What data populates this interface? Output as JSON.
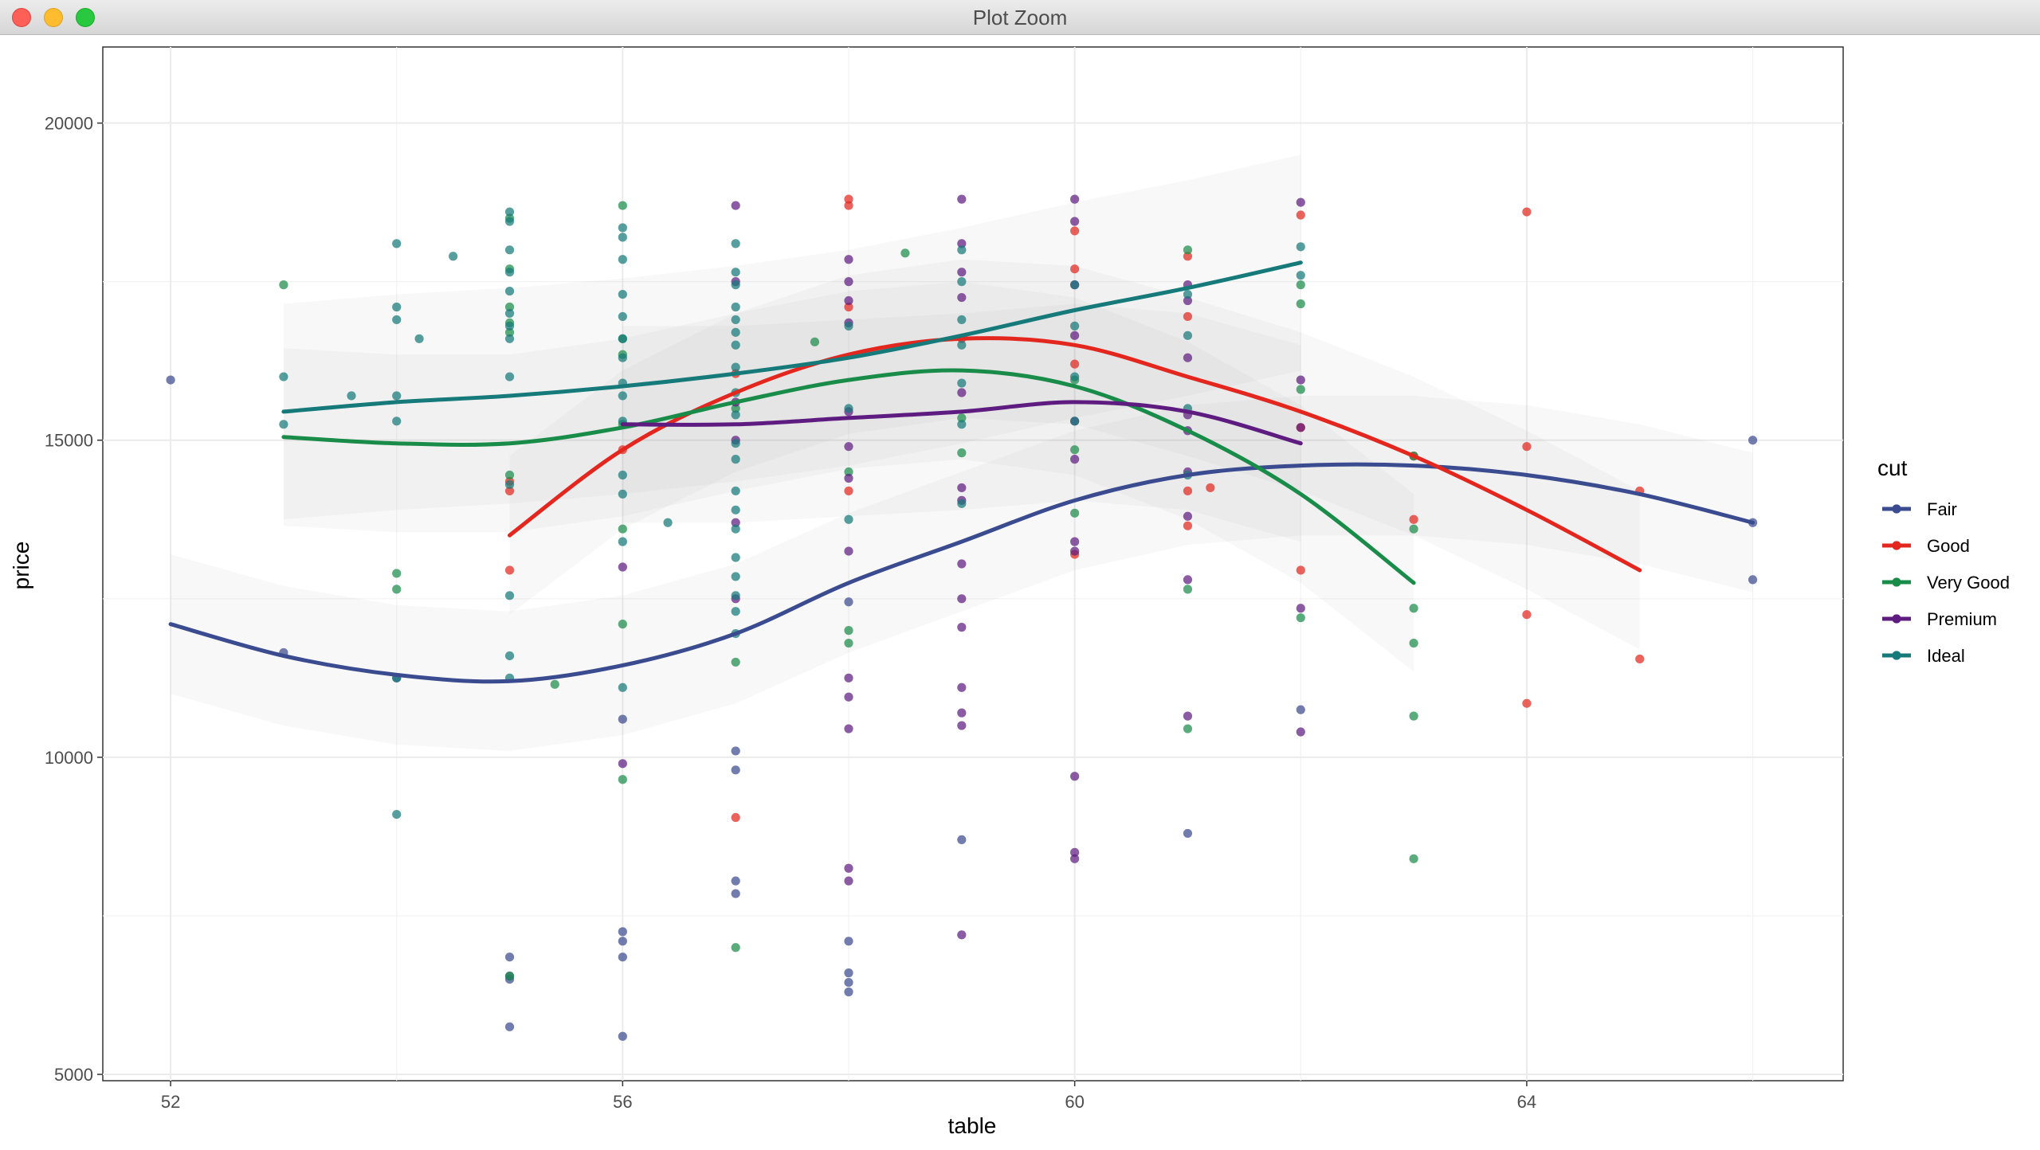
{
  "window": {
    "title": "Plot Zoom"
  },
  "chart_data": {
    "type": "scatter",
    "title": "",
    "xlabel": "table",
    "ylabel": "price",
    "xlim": [
      51.4,
      66.8
    ],
    "ylim": [
      4900,
      21200
    ],
    "x_ticks": [
      52,
      56,
      60,
      64
    ],
    "y_ticks": [
      5000,
      10000,
      15000,
      20000
    ],
    "grid": true,
    "legend": {
      "title": "cut",
      "position": "right"
    },
    "series": [
      {
        "name": "Fair",
        "color": "#3b4b8f",
        "points": [
          [
            52,
            15950
          ],
          [
            53,
            11650
          ],
          [
            54,
            11250
          ],
          [
            55,
            6850
          ],
          [
            55,
            6550
          ],
          [
            55,
            6500
          ],
          [
            55,
            5750
          ],
          [
            56,
            10600
          ],
          [
            56,
            7250
          ],
          [
            56,
            7100
          ],
          [
            56,
            6850
          ],
          [
            56,
            5600
          ],
          [
            57,
            10100
          ],
          [
            57,
            9800
          ],
          [
            57,
            8050
          ],
          [
            57,
            7850
          ],
          [
            58,
            12450
          ],
          [
            58,
            7100
          ],
          [
            58,
            6600
          ],
          [
            58,
            6450
          ],
          [
            58,
            6300
          ],
          [
            59,
            8700
          ],
          [
            61,
            8800
          ],
          [
            62,
            10750
          ],
          [
            66,
            15000
          ],
          [
            66,
            13700
          ],
          [
            66,
            12800
          ]
        ],
        "smooth": [
          [
            52,
            12100
          ],
          [
            53,
            11600
          ],
          [
            54,
            11300
          ],
          [
            55,
            11200
          ],
          [
            56,
            11450
          ],
          [
            57,
            11950
          ],
          [
            58,
            12750
          ],
          [
            59,
            13400
          ],
          [
            60,
            14050
          ],
          [
            61,
            14450
          ],
          [
            62,
            14600
          ],
          [
            63,
            14600
          ],
          [
            64,
            14450
          ],
          [
            65,
            14150
          ],
          [
            66,
            13700
          ]
        ]
      },
      {
        "name": "Good",
        "color": "#e3271f",
        "points": [
          [
            55,
            14200
          ],
          [
            55,
            14350
          ],
          [
            55,
            12950
          ],
          [
            56,
            14850
          ],
          [
            57,
            16050
          ],
          [
            57,
            9050
          ],
          [
            58,
            18800
          ],
          [
            58,
            18700
          ],
          [
            58,
            17100
          ],
          [
            58,
            14200
          ],
          [
            59,
            16600
          ],
          [
            60,
            18300
          ],
          [
            60,
            17700
          ],
          [
            60,
            16200
          ],
          [
            60,
            13200
          ],
          [
            61,
            17900
          ],
          [
            61,
            16950
          ],
          [
            61,
            14200
          ],
          [
            61,
            13650
          ],
          [
            61.2,
            14250
          ],
          [
            62,
            18550
          ],
          [
            62,
            15200
          ],
          [
            62,
            12950
          ],
          [
            63,
            14750
          ],
          [
            63,
            13750
          ],
          [
            64,
            18600
          ],
          [
            64,
            14900
          ],
          [
            64,
            12250
          ],
          [
            64,
            10850
          ],
          [
            65,
            14200
          ],
          [
            65,
            11550
          ]
        ],
        "smooth": [
          [
            55,
            13500
          ],
          [
            56,
            14850
          ],
          [
            57,
            15750
          ],
          [
            58,
            16350
          ],
          [
            59,
            16600
          ],
          [
            60,
            16500
          ],
          [
            61,
            16000
          ],
          [
            62,
            15450
          ],
          [
            63,
            14750
          ],
          [
            64,
            13900
          ],
          [
            65,
            12950
          ]
        ]
      },
      {
        "name": "Very Good",
        "color": "#1a8c4a",
        "points": [
          [
            53,
            17450
          ],
          [
            54,
            12900
          ],
          [
            54,
            12650
          ],
          [
            55,
            18500
          ],
          [
            55,
            17700
          ],
          [
            55,
            17100
          ],
          [
            55,
            16850
          ],
          [
            55,
            16700
          ],
          [
            55,
            14450
          ],
          [
            55,
            6550
          ],
          [
            55.4,
            11150
          ],
          [
            56,
            18700
          ],
          [
            56,
            16600
          ],
          [
            56,
            16350
          ],
          [
            56,
            15250
          ],
          [
            56,
            13600
          ],
          [
            56,
            12100
          ],
          [
            56,
            9650
          ],
          [
            57,
            15500
          ],
          [
            57,
            11500
          ],
          [
            57,
            7000
          ],
          [
            57.7,
            16550
          ],
          [
            58,
            14500
          ],
          [
            58,
            12000
          ],
          [
            58,
            11800
          ],
          [
            58.5,
            17950
          ],
          [
            59,
            15350
          ],
          [
            59,
            14800
          ],
          [
            60,
            15950
          ],
          [
            60,
            14850
          ],
          [
            60,
            13850
          ],
          [
            61,
            18000
          ],
          [
            61,
            12650
          ],
          [
            61,
            10450
          ],
          [
            62,
            17450
          ],
          [
            62,
            17150
          ],
          [
            62,
            15800
          ],
          [
            62,
            12200
          ],
          [
            63,
            14750
          ],
          [
            63,
            13600
          ],
          [
            63,
            12350
          ],
          [
            63,
            11800
          ],
          [
            63,
            10650
          ],
          [
            63,
            8400
          ]
        ],
        "smooth": [
          [
            53,
            15050
          ],
          [
            54,
            14950
          ],
          [
            55,
            14950
          ],
          [
            56,
            15200
          ],
          [
            57,
            15600
          ],
          [
            58,
            15950
          ],
          [
            59,
            16100
          ],
          [
            60,
            15850
          ],
          [
            61,
            15150
          ],
          [
            62,
            14150
          ],
          [
            63,
            12750
          ]
        ]
      },
      {
        "name": "Premium",
        "color": "#5e1c80",
        "points": [
          [
            56,
            13000
          ],
          [
            56,
            9900
          ],
          [
            57,
            18700
          ],
          [
            57,
            17500
          ],
          [
            57,
            15600
          ],
          [
            57,
            15000
          ],
          [
            57,
            13700
          ],
          [
            57,
            12500
          ],
          [
            58,
            17850
          ],
          [
            58,
            17500
          ],
          [
            58,
            17200
          ],
          [
            58,
            16850
          ],
          [
            58,
            15450
          ],
          [
            58,
            14900
          ],
          [
            58,
            14400
          ],
          [
            58,
            13250
          ],
          [
            58,
            11250
          ],
          [
            58,
            10950
          ],
          [
            58,
            10450
          ],
          [
            58,
            8250
          ],
          [
            58,
            8050
          ],
          [
            59,
            18800
          ],
          [
            59,
            18100
          ],
          [
            59,
            17650
          ],
          [
            59,
            17250
          ],
          [
            59,
            15750
          ],
          [
            59,
            14250
          ],
          [
            59,
            14050
          ],
          [
            59,
            13050
          ],
          [
            59,
            12500
          ],
          [
            59,
            12050
          ],
          [
            59,
            11100
          ],
          [
            59,
            10700
          ],
          [
            59,
            10500
          ],
          [
            59,
            7200
          ],
          [
            60,
            18800
          ],
          [
            60,
            18450
          ],
          [
            60,
            17450
          ],
          [
            60,
            16650
          ],
          [
            60,
            15300
          ],
          [
            60,
            14700
          ],
          [
            60,
            13400
          ],
          [
            60,
            13250
          ],
          [
            60,
            9700
          ],
          [
            60,
            8500
          ],
          [
            60,
            8400
          ],
          [
            61,
            17450
          ],
          [
            61,
            17200
          ],
          [
            61,
            16300
          ],
          [
            61,
            15400
          ],
          [
            61,
            15150
          ],
          [
            61,
            14500
          ],
          [
            61,
            13800
          ],
          [
            61,
            12800
          ],
          [
            61,
            10650
          ],
          [
            62,
            18750
          ],
          [
            62,
            15950
          ],
          [
            62,
            15200
          ],
          [
            62,
            12350
          ],
          [
            62,
            10400
          ]
        ],
        "smooth": [
          [
            56,
            15250
          ],
          [
            57,
            15250
          ],
          [
            58,
            15350
          ],
          [
            59,
            15450
          ],
          [
            60,
            15600
          ],
          [
            61,
            15450
          ],
          [
            62,
            14950
          ]
        ]
      },
      {
        "name": "Ideal",
        "color": "#167a7a",
        "points": [
          [
            53,
            16000
          ],
          [
            53,
            15250
          ],
          [
            53.6,
            15700
          ],
          [
            54,
            18100
          ],
          [
            54,
            17100
          ],
          [
            54,
            16900
          ],
          [
            54,
            15700
          ],
          [
            54,
            15300
          ],
          [
            54,
            11250
          ],
          [
            54,
            9100
          ],
          [
            54.2,
            16600
          ],
          [
            54.5,
            17900
          ],
          [
            55,
            18600
          ],
          [
            55,
            18450
          ],
          [
            55,
            18000
          ],
          [
            55,
            17650
          ],
          [
            55,
            17350
          ],
          [
            55,
            17000
          ],
          [
            55,
            16800
          ],
          [
            55,
            16600
          ],
          [
            55,
            16000
          ],
          [
            55,
            14300
          ],
          [
            55,
            12550
          ],
          [
            55,
            11600
          ],
          [
            55,
            11250
          ],
          [
            56,
            18350
          ],
          [
            56,
            18200
          ],
          [
            56,
            17850
          ],
          [
            56,
            17300
          ],
          [
            56,
            16950
          ],
          [
            56,
            16600
          ],
          [
            56,
            16300
          ],
          [
            56,
            15900
          ],
          [
            56,
            15700
          ],
          [
            56,
            15300
          ],
          [
            56,
            14450
          ],
          [
            56,
            14150
          ],
          [
            56,
            13400
          ],
          [
            56,
            11100
          ],
          [
            56.4,
            13700
          ],
          [
            57,
            18100
          ],
          [
            57,
            17650
          ],
          [
            57,
            17450
          ],
          [
            57,
            17100
          ],
          [
            57,
            16900
          ],
          [
            57,
            16700
          ],
          [
            57,
            16500
          ],
          [
            57,
            16150
          ],
          [
            57,
            15750
          ],
          [
            57,
            15400
          ],
          [
            57,
            14950
          ],
          [
            57,
            14700
          ],
          [
            57,
            14200
          ],
          [
            57,
            13900
          ],
          [
            57,
            13600
          ],
          [
            57,
            13150
          ],
          [
            57,
            12850
          ],
          [
            57,
            12550
          ],
          [
            57,
            12300
          ],
          [
            57,
            11950
          ],
          [
            58,
            16800
          ],
          [
            58,
            15500
          ],
          [
            58,
            13750
          ],
          [
            59,
            18000
          ],
          [
            59,
            17500
          ],
          [
            59,
            16900
          ],
          [
            59,
            16500
          ],
          [
            59,
            15900
          ],
          [
            59,
            15250
          ],
          [
            59,
            14000
          ],
          [
            60,
            17450
          ],
          [
            60,
            16800
          ],
          [
            60,
            16000
          ],
          [
            60,
            15300
          ],
          [
            61,
            17300
          ],
          [
            61,
            16650
          ],
          [
            61,
            15500
          ],
          [
            61,
            14450
          ],
          [
            62,
            18050
          ],
          [
            62,
            17600
          ]
        ],
        "smooth": [
          [
            53,
            15450
          ],
          [
            54,
            15600
          ],
          [
            55,
            15700
          ],
          [
            56,
            15850
          ],
          [
            57,
            16050
          ],
          [
            58,
            16300
          ],
          [
            59,
            16650
          ],
          [
            60,
            17050
          ],
          [
            61,
            17400
          ],
          [
            62,
            17800
          ]
        ]
      }
    ]
  }
}
